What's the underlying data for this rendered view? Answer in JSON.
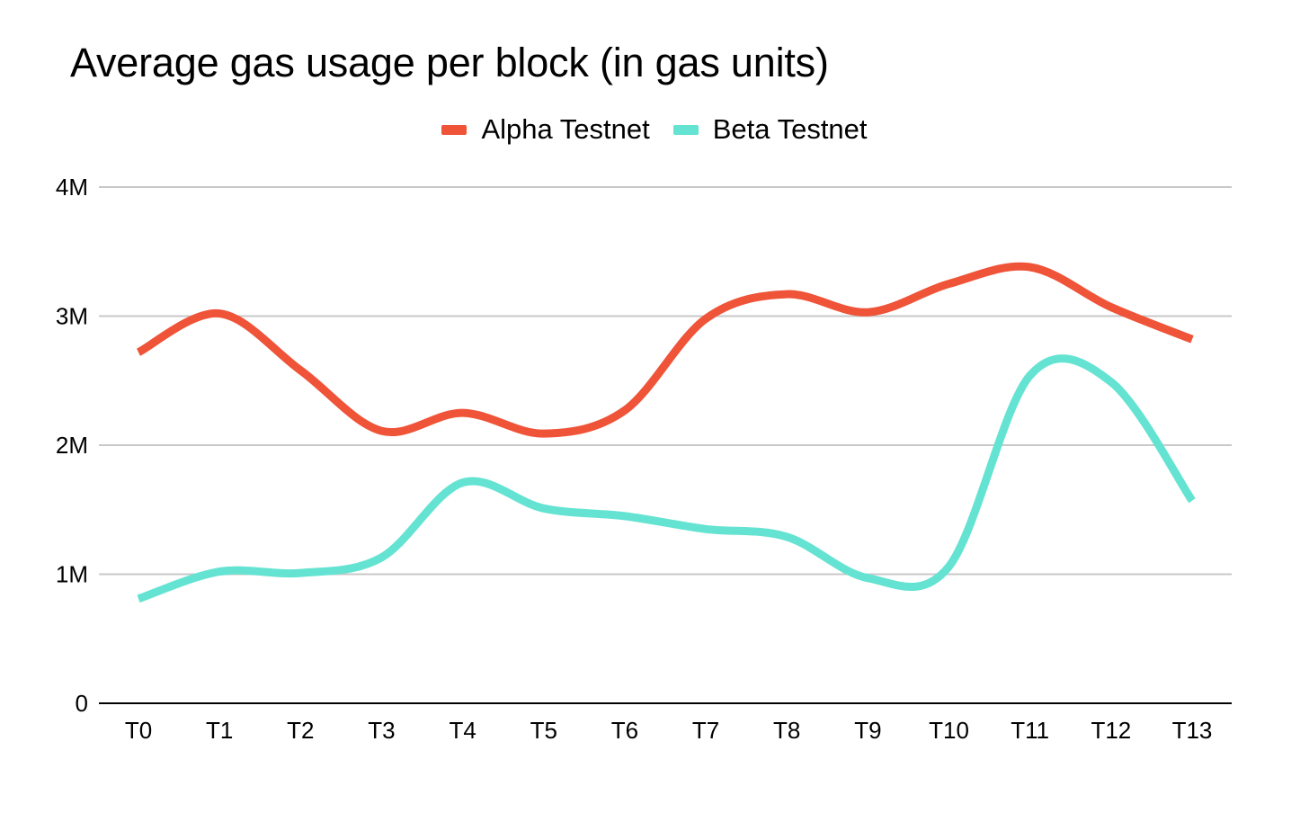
{
  "chart_data": {
    "type": "line",
    "title": "Average gas usage per block (in gas units)",
    "xlabel": "",
    "ylabel": "",
    "categories": [
      "T0",
      "T1",
      "T2",
      "T3",
      "T4",
      "T5",
      "T6",
      "T7",
      "T8",
      "T9",
      "T10",
      "T11",
      "T12",
      "T13"
    ],
    "y_ticks": [
      {
        "value": 0,
        "label": "0"
      },
      {
        "value": 1000000,
        "label": "1M"
      },
      {
        "value": 2000000,
        "label": "2M"
      },
      {
        "value": 3000000,
        "label": "3M"
      },
      {
        "value": 4000000,
        "label": "4M"
      }
    ],
    "ylim": [
      0,
      4000000
    ],
    "grid": true,
    "legend_position": "top-center",
    "smooth": true,
    "series": [
      {
        "name": "Alpha Testnet",
        "color": "#EF5338",
        "values": [
          2720000,
          3020000,
          2580000,
          2110000,
          2250000,
          2090000,
          2270000,
          2980000,
          3170000,
          3030000,
          3250000,
          3380000,
          3070000,
          2820000
        ]
      },
      {
        "name": "Beta Testnet",
        "color": "#64E3D2",
        "values": [
          810000,
          1020000,
          1010000,
          1130000,
          1710000,
          1510000,
          1450000,
          1350000,
          1290000,
          970000,
          1060000,
          2540000,
          2490000,
          1570000
        ]
      }
    ]
  }
}
